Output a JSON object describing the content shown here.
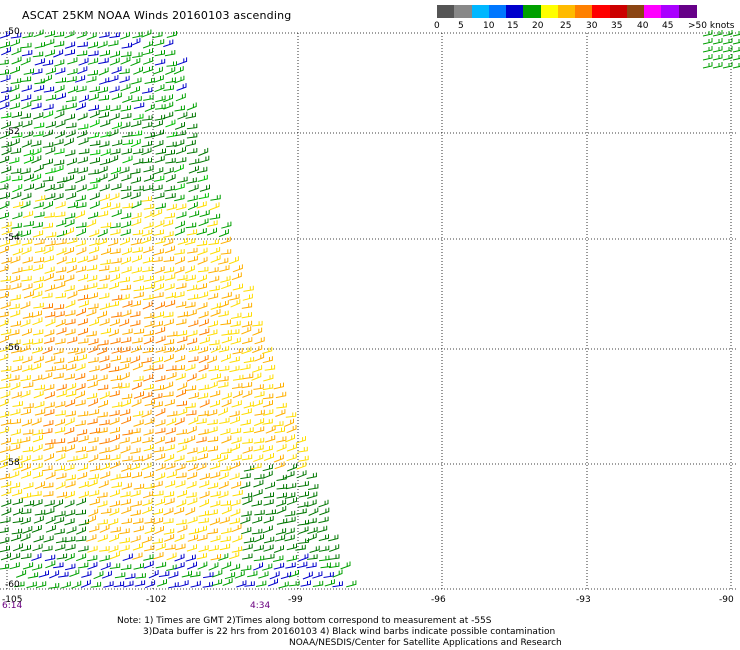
{
  "title": "ASCAT 25KM NOAA Winds 20160103 ascending",
  "colorbar": {
    "labels": [
      "0",
      "5",
      "10",
      "15",
      "20",
      "25",
      "30",
      "35",
      "40",
      "45",
      ">50 knots"
    ],
    "colors": [
      "#555555",
      "#888888",
      "#00b7ff",
      "#0077ff",
      "#0000cc",
      "#00a000",
      "#ffff00",
      "#ffbb00",
      "#ff8000",
      "#ff0000",
      "#cc0000",
      "#8b4513",
      "#ff00ff",
      "#aa00ff",
      "#660088"
    ]
  },
  "map": {
    "lat_labels": [
      "-50",
      "-52",
      "-54",
      "-56",
      "-58",
      "-60"
    ],
    "lon_labels": [
      "-105",
      "-102",
      "-99",
      "-96",
      "-93",
      "-90"
    ],
    "time_labels": [
      "6:14",
      "4:34"
    ]
  },
  "notes": [
    "Note: 1) Times are GMT 2)Times along bottom correspond to measurement at -55S",
    "3)Data buffer is 22 hrs from 20160103 4) Black wind barbs indicate possible contamination",
    "NOAA/NESDIS/Center for Satellite Applications and Research"
  ]
}
